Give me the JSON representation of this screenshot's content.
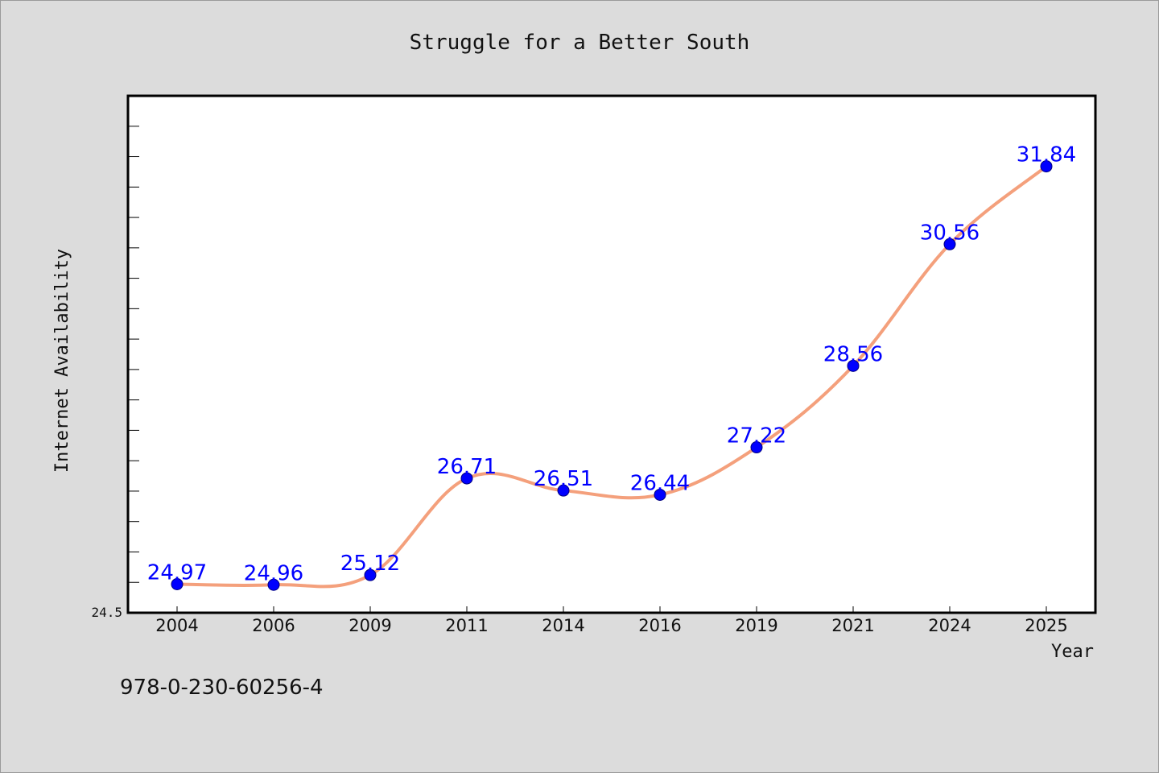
{
  "chart_data": {
    "type": "line",
    "title": "Struggle for a Better South",
    "xlabel": "Year",
    "ylabel": "Internet Availability",
    "categories": [
      "2004",
      "2006",
      "2009",
      "2011",
      "2014",
      "2016",
      "2019",
      "2021",
      "2024",
      "2025"
    ],
    "series": [
      {
        "values": [
          24.97,
          24.96,
          25.12,
          26.71,
          26.51,
          26.44,
          27.22,
          28.56,
          30.56,
          31.84
        ]
      }
    ],
    "data_labels": [
      "24.97",
      "24.96",
      "25.12",
      "26.71",
      "26.51",
      "26.44",
      "27.22",
      "28.56",
      "30.56",
      "31.84"
    ],
    "ylim": [
      24.5,
      33.0
    ],
    "y_tick_labels": [
      "24.5"
    ],
    "grid": false,
    "legend": "none",
    "colors": {
      "line": "#f4a07c",
      "marker": "#0000ff",
      "data_label": "#0000ff",
      "background": "#dcdcdc",
      "plot_area": "#ffffff"
    }
  },
  "footer_text": "978-0-230-60256-4"
}
